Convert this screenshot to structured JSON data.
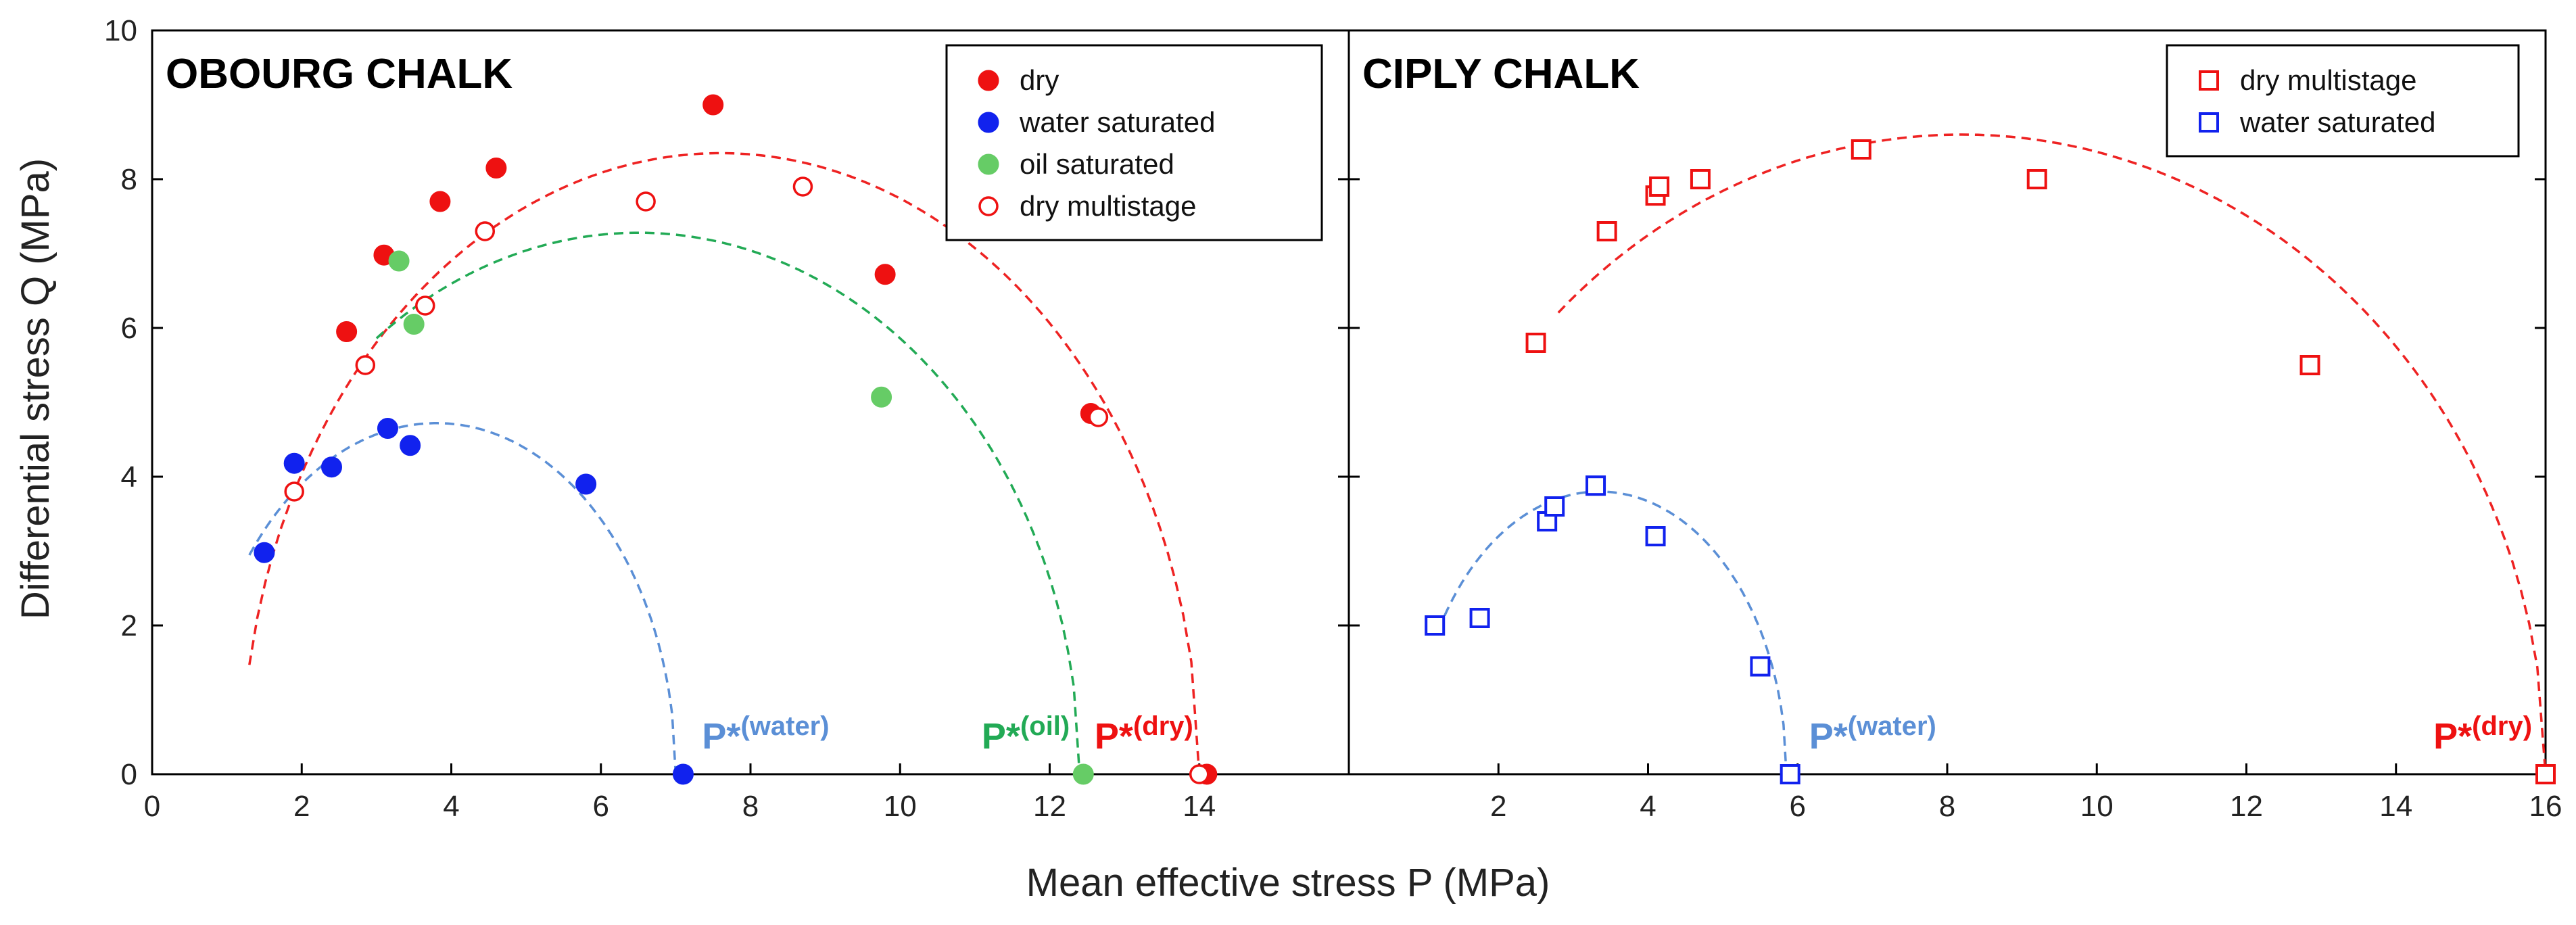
{
  "chart_data": {
    "type": "scatter",
    "xlabel": "Mean effective stress P (MPa)",
    "ylabel": "Differential stress Q (MPa)",
    "ylim": [
      0,
      10
    ],
    "yticks": [
      0,
      2,
      4,
      6,
      8,
      10
    ],
    "panels": [
      {
        "id": "obourg",
        "title": "OBOURG CHALK",
        "xlim": [
          0,
          16
        ],
        "xticks": [
          0,
          2,
          4,
          6,
          8,
          10,
          12,
          14
        ],
        "legend_position": "top-right",
        "series": [
          {
            "name": "dry",
            "marker": "circle-filled",
            "color": "#ee1111",
            "points": [
              [
                2.6,
                5.95
              ],
              [
                3.1,
                6.98
              ],
              [
                3.85,
                7.7
              ],
              [
                4.6,
                8.15
              ],
              [
                7.5,
                9.0
              ],
              [
                9.8,
                6.72
              ],
              [
                12.55,
                4.85
              ],
              [
                14.1,
                0.0
              ]
            ]
          },
          {
            "name": "water saturated",
            "marker": "circle-filled",
            "color": "#1122ee",
            "points": [
              [
                1.5,
                2.98
              ],
              [
                1.9,
                4.18
              ],
              [
                2.4,
                4.13
              ],
              [
                3.15,
                4.65
              ],
              [
                3.45,
                4.42
              ],
              [
                5.8,
                3.9
              ],
              [
                7.1,
                0.0
              ]
            ]
          },
          {
            "name": "oil saturated",
            "marker": "circle-filled",
            "color": "#66cc66",
            "points": [
              [
                3.3,
                6.9
              ],
              [
                3.5,
                6.05
              ],
              [
                9.75,
                5.07
              ],
              [
                12.45,
                0.0
              ]
            ]
          },
          {
            "name": "dry multistage",
            "marker": "circle-open",
            "color": "#ee1111",
            "points": [
              [
                1.9,
                3.8
              ],
              [
                2.85,
                5.5
              ],
              [
                3.65,
                6.3
              ],
              [
                4.45,
                7.3
              ],
              [
                6.6,
                7.7
              ],
              [
                8.7,
                7.9
              ],
              [
                12.65,
                4.8
              ],
              [
                14.0,
                0.0
              ]
            ]
          }
        ],
        "envelopes": [
          {
            "name": "dry",
            "color": "#ee2222",
            "cx": 7.6,
            "a": 6.4,
            "b": 8.35,
            "x_start": 1.3
          },
          {
            "name": "oil saturated",
            "color": "#22aa55",
            "cx": 6.5,
            "a": 5.9,
            "b": 7.28,
            "x_start": 3.0
          },
          {
            "name": "water saturated",
            "color": "#5b8fd6",
            "cx": 3.8,
            "a": 3.2,
            "b": 4.72,
            "x_start": 1.3
          }
        ],
        "annotations": [
          {
            "label": "P*",
            "sup": "(water)",
            "color": "#5b8fd6",
            "x": 7.1
          },
          {
            "label": "P*",
            "sup": "(oil)",
            "color": "#22aa55",
            "x": 12.45
          },
          {
            "label": "P*",
            "sup": "(dry)",
            "color": "#ee1111",
            "x": 14.1
          }
        ]
      },
      {
        "id": "ciply",
        "title": "CIPLY CHALK",
        "xlim": [
          0,
          16
        ],
        "xticks": [
          2,
          4,
          6,
          8,
          10,
          12,
          14,
          16
        ],
        "legend_position": "top-right",
        "series": [
          {
            "name": "dry multistage",
            "marker": "square-open",
            "color": "#ee1111",
            "points": [
              [
                2.5,
                5.8
              ],
              [
                3.45,
                7.3
              ],
              [
                4.1,
                7.78
              ],
              [
                4.15,
                7.9
              ],
              [
                4.7,
                8.0
              ],
              [
                6.85,
                8.4
              ],
              [
                9.2,
                8.0
              ],
              [
                12.85,
                5.5
              ],
              [
                16.0,
                0.0
              ]
            ]
          },
          {
            "name": "water saturated",
            "marker": "square-open",
            "color": "#1122ee",
            "points": [
              [
                1.15,
                2.0
              ],
              [
                1.75,
                2.1
              ],
              [
                2.65,
                3.4
              ],
              [
                2.75,
                3.6
              ],
              [
                3.3,
                3.88
              ],
              [
                4.1,
                3.2
              ],
              [
                5.5,
                1.45
              ],
              [
                5.9,
                0.0
              ]
            ]
          }
        ],
        "envelopes": [
          {
            "name": "dry multistage",
            "color": "#ee2222",
            "cx": 8.2,
            "a": 7.8,
            "b": 8.6,
            "x_start": 2.8
          },
          {
            "name": "water saturated",
            "color": "#5b8fd6",
            "cx": 3.35,
            "a": 2.5,
            "b": 3.8,
            "x_start": 1.2
          }
        ],
        "annotations": [
          {
            "label": "P*",
            "sup": "(water)",
            "color": "#5b8fd6",
            "x": 5.9
          },
          {
            "label": "P*",
            "sup": "(dry)",
            "color": "#ee1111",
            "x": 16.0
          }
        ]
      }
    ]
  }
}
